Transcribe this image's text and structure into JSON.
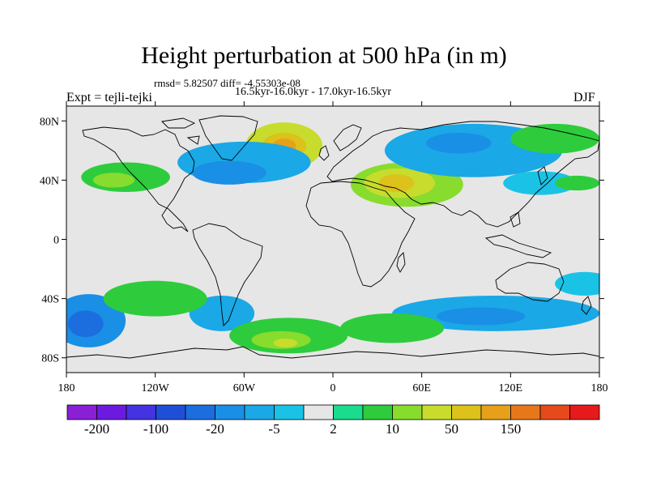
{
  "chart_data": {
    "type": "heatmap",
    "title": "Height perturbation at 500 hPa (in m)",
    "stats": "rmsd= 5.82507 diff= -4.55303e-08",
    "period": "16.5kyr-16.0kyr - 17.0kyr-16.5kyr",
    "left_label": "Expt = tejli-tejki",
    "right_label": "DJF",
    "xlim": [
      -180,
      180
    ],
    "ylim": [
      -90,
      90
    ],
    "x_ticks": [
      {
        "value": -180,
        "label": "180"
      },
      {
        "value": -120,
        "label": "120W"
      },
      {
        "value": -60,
        "label": "60W"
      },
      {
        "value": 0,
        "label": "0"
      },
      {
        "value": 60,
        "label": "60E"
      },
      {
        "value": 120,
        "label": "120E"
      },
      {
        "value": 180,
        "label": "180"
      }
    ],
    "y_ticks": [
      {
        "value": 80,
        "label": "80N"
      },
      {
        "value": 40,
        "label": "40N"
      },
      {
        "value": 0,
        "label": "0"
      },
      {
        "value": -40,
        "label": "40S"
      },
      {
        "value": -80,
        "label": "80S"
      }
    ],
    "background_color": "#e6e6e6",
    "colorbar": {
      "colors": [
        "#8a1fd6",
        "#6c1ae0",
        "#4433e0",
        "#1f4fd6",
        "#1c6ede",
        "#1a8fe6",
        "#1aa8e6",
        "#1ac3e6",
        "#e6e6e6",
        "#1adc8c",
        "#2ecc3c",
        "#88dc2e",
        "#c8dc2e",
        "#dcc21a",
        "#e6a01a",
        "#e6781a",
        "#e64a1a",
        "#e61a1a"
      ],
      "labels": [
        {
          "label": "-200",
          "boundary": 1
        },
        {
          "label": "-100",
          "boundary": 3
        },
        {
          "label": "-20",
          "boundary": 5
        },
        {
          "label": "-5",
          "boundary": 7
        },
        {
          "label": "2",
          "boundary": 9
        },
        {
          "label": "10",
          "boundary": 11
        },
        {
          "label": "50",
          "boundary": 13
        },
        {
          "label": "150",
          "boundary": 15
        }
      ]
    },
    "features": [
      {
        "lon": -33,
        "lat": 63,
        "rlon": 26,
        "rlat": 16,
        "level": 12
      },
      {
        "lon": -33,
        "lat": 63,
        "rlon": 15,
        "rlat": 9,
        "level": 13
      },
      {
        "lon": -33,
        "lat": 63,
        "rlon": 8,
        "rlat": 5,
        "level": 14
      },
      {
        "lon": 50,
        "lat": 37,
        "rlon": 38,
        "rlat": 15,
        "level": 11
      },
      {
        "lon": 45,
        "lat": 38,
        "rlon": 24,
        "rlat": 10,
        "level": 12
      },
      {
        "lon": 43,
        "lat": 38,
        "rlon": 12,
        "rlat": 6,
        "level": 13
      },
      {
        "lon": -140,
        "lat": 42,
        "rlon": 30,
        "rlat": 10,
        "level": 10
      },
      {
        "lon": -148,
        "lat": 40,
        "rlon": 14,
        "rlat": 5,
        "level": 11
      },
      {
        "lon": -60,
        "lat": 52,
        "rlon": 45,
        "rlat": 14,
        "level": 6
      },
      {
        "lon": -70,
        "lat": 45,
        "rlon": 25,
        "rlat": 8,
        "level": 5
      },
      {
        "lon": 95,
        "lat": 60,
        "rlon": 60,
        "rlat": 18,
        "level": 6
      },
      {
        "lon": 85,
        "lat": 65,
        "rlon": 22,
        "rlat": 7,
        "level": 5
      },
      {
        "lon": 150,
        "lat": 68,
        "rlon": 30,
        "rlat": 10,
        "level": 10
      },
      {
        "lon": 140,
        "lat": 38,
        "rlon": 25,
        "rlat": 8,
        "level": 7
      },
      {
        "lon": 165,
        "lat": 38,
        "rlon": 15,
        "rlat": 5,
        "level": 10
      },
      {
        "lon": -165,
        "lat": -55,
        "rlon": 25,
        "rlat": 18,
        "level": 5
      },
      {
        "lon": -167,
        "lat": -57,
        "rlon": 12,
        "rlat": 9,
        "level": 4
      },
      {
        "lon": -75,
        "lat": -50,
        "rlon": 22,
        "rlat": 12,
        "level": 6
      },
      {
        "lon": -120,
        "lat": -40,
        "rlon": 35,
        "rlat": 12,
        "level": 10
      },
      {
        "lon": -30,
        "lat": -65,
        "rlon": 40,
        "rlat": 12,
        "level": 10
      },
      {
        "lon": -35,
        "lat": -68,
        "rlon": 20,
        "rlat": 6,
        "level": 11
      },
      {
        "lon": -32,
        "lat": -70,
        "rlon": 8,
        "rlat": 3,
        "level": 12
      },
      {
        "lon": 110,
        "lat": -50,
        "rlon": 70,
        "rlat": 12,
        "level": 6
      },
      {
        "lon": 100,
        "lat": -52,
        "rlon": 30,
        "rlat": 6,
        "level": 5
      },
      {
        "lon": 40,
        "lat": -60,
        "rlon": 35,
        "rlat": 10,
        "level": 10
      },
      {
        "lon": 170,
        "lat": -30,
        "rlon": 20,
        "rlat": 8,
        "level": 7
      }
    ]
  }
}
